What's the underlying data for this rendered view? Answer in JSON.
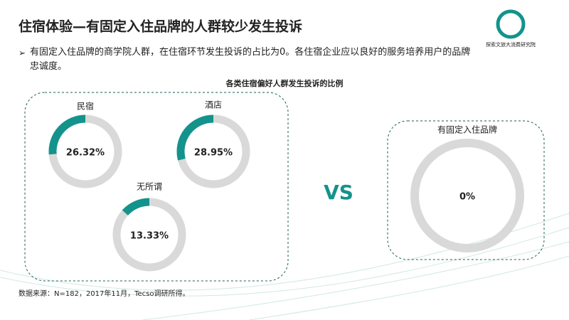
{
  "header": {
    "title": "住宿体验—有固定入住品牌的人群较少发生投诉",
    "logo_text": "探索文旅大消费研究院"
  },
  "bullet": "有固定入住品牌的商学院人群，在住宿环节发生投诉的占比为0。各住宿企业应以良好的服务培养用户的品牌忠诚度。",
  "source": "数据来源：N=182，2017年11月，Tecso调研所得。",
  "chart_data": {
    "type": "donut",
    "title": "各类住宿偏好人群发生投诉的比例",
    "categories": [
      "民宿",
      "酒店",
      "无所谓",
      "有固定入住品牌"
    ],
    "values": [
      26.32,
      28.95,
      13.33,
      0
    ],
    "value_labels": [
      "26.32%",
      "28.95%",
      "13.33%",
      "0%"
    ],
    "color": "#13938c",
    "track_color": "#d9d9d9",
    "annotation": "VS"
  }
}
